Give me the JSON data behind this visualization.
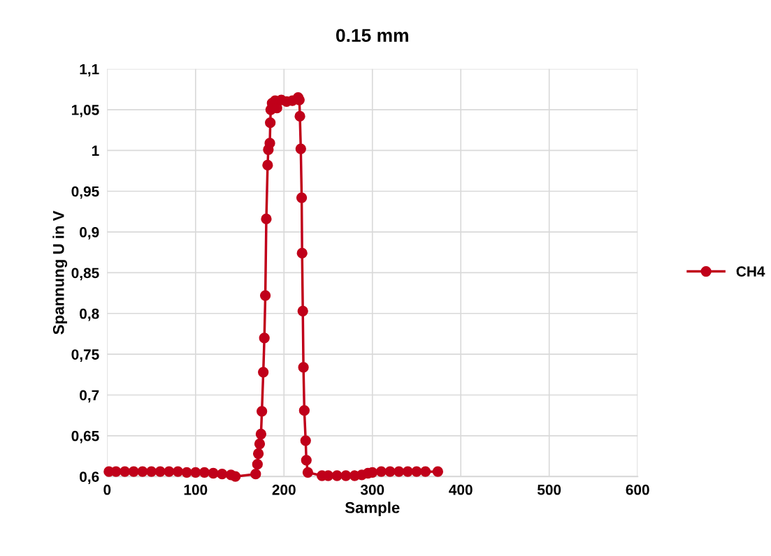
{
  "chart_data": {
    "type": "line",
    "title": "0.15 mm",
    "xlabel": "Sample",
    "ylabel": "Spannung U in V",
    "xlim": [
      0,
      600
    ],
    "xticks": [
      0,
      100,
      200,
      300,
      400,
      500,
      600
    ],
    "ylim": [
      0.6,
      1.1
    ],
    "yticks": [
      {
        "value": 0.6,
        "label": "0,6"
      },
      {
        "value": 0.65,
        "label": "0,65"
      },
      {
        "value": 0.7,
        "label": "0,7"
      },
      {
        "value": 0.75,
        "label": "0,75"
      },
      {
        "value": 0.8,
        "label": "0,8"
      },
      {
        "value": 0.85,
        "label": "0,85"
      },
      {
        "value": 0.9,
        "label": "0,9"
      },
      {
        "value": 0.95,
        "label": "0,95"
      },
      {
        "value": 1,
        "label": "1"
      },
      {
        "value": 1.05,
        "label": "1,05"
      },
      {
        "value": 1.1,
        "label": "1,1"
      }
    ],
    "grid": true,
    "legend": "right",
    "marker": "circle",
    "line_style": "solid",
    "series": [
      {
        "name": "CH4",
        "color": "#c0001a",
        "x": [
          2,
          10,
          20,
          30,
          40,
          50,
          60,
          70,
          80,
          90,
          100,
          110,
          120,
          130,
          140,
          145,
          168,
          170,
          171,
          172.5,
          174,
          175,
          176.6,
          177.8,
          178.9,
          180,
          181.5,
          182.3,
          184,
          184.5,
          185,
          186.6,
          190,
          192,
          197,
          203,
          209.5,
          216,
          217.4,
          218,
          219,
          220,
          220.5,
          221.3,
          222,
          223,
          224.5,
          225.3,
          227,
          243,
          250,
          260,
          270,
          280,
          288,
          295,
          300,
          310,
          320,
          330,
          340,
          350,
          360,
          374
        ],
        "values": [
          0.606,
          0.606,
          0.606,
          0.606,
          0.606,
          0.606,
          0.606,
          0.606,
          0.606,
          0.605,
          0.605,
          0.605,
          0.604,
          0.603,
          0.602,
          0.6,
          0.603,
          0.615,
          0.628,
          0.64,
          0.652,
          0.68,
          0.728,
          0.77,
          0.822,
          0.916,
          0.982,
          1.001,
          1.009,
          1.034,
          1.05,
          1.058,
          1.061,
          1.052,
          1.062,
          1.06,
          1.061,
          1.065,
          1.062,
          1.042,
          1.002,
          0.942,
          0.874,
          0.803,
          0.734,
          0.681,
          0.644,
          0.62,
          0.605,
          0.601,
          0.601,
          0.601,
          0.601,
          0.601,
          0.602,
          0.604,
          0.605,
          0.606,
          0.606,
          0.606,
          0.606,
          0.606,
          0.606,
          0.606
        ]
      }
    ]
  }
}
